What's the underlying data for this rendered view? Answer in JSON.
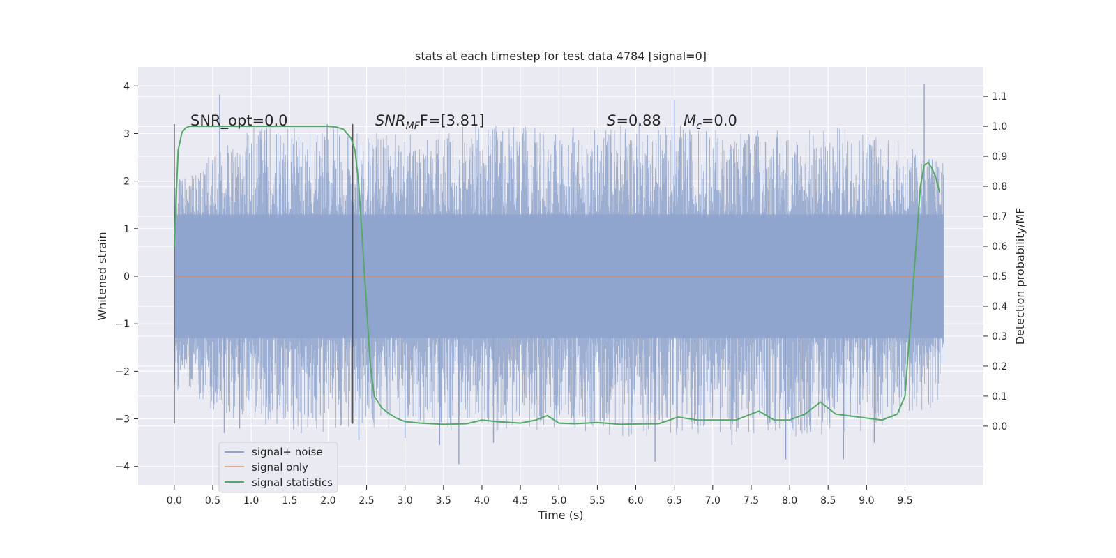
{
  "chart_data": {
    "type": "line",
    "title": "stats at each timestep for test data 4784 [signal=0]",
    "xlabel": "Time (s)",
    "ylabel": "Whitened strain",
    "ylabel_right": "Detection probability/MF",
    "xlim": [
      -0.47,
      10.52
    ],
    "ylim": [
      -4.4,
      4.4
    ],
    "ylim_right": [
      -0.198,
      1.198
    ],
    "x_ticks": [
      "0.0",
      "0.5",
      "1.0",
      "1.5",
      "2.0",
      "2.5",
      "3.0",
      "3.5",
      "4.0",
      "4.5",
      "5.0",
      "5.5",
      "6.0",
      "6.5",
      "7.0",
      "7.5",
      "8.0",
      "8.5",
      "9.0",
      "9.5"
    ],
    "x_tick_values": [
      0.0,
      0.5,
      1.0,
      1.5,
      2.0,
      2.5,
      3.0,
      3.5,
      4.0,
      4.5,
      5.0,
      5.5,
      6.0,
      6.5,
      7.0,
      7.5,
      8.0,
      8.5,
      9.0,
      9.5
    ],
    "y_ticks": [
      "−4",
      "−3",
      "−2",
      "−1",
      "0",
      "1",
      "2",
      "3",
      "4"
    ],
    "y_tick_values": [
      -4,
      -3,
      -2,
      -1,
      0,
      1,
      2,
      3,
      4
    ],
    "y_ticks_right": [
      "0.0",
      "0.1",
      "0.2",
      "0.3",
      "0.4",
      "0.5",
      "0.6",
      "0.7",
      "0.8",
      "0.9",
      "1.0",
      "1.1"
    ],
    "y_tick_values_right": [
      0.0,
      0.1,
      0.2,
      0.3,
      0.4,
      0.5,
      0.6,
      0.7,
      0.8,
      0.9,
      1.0,
      1.1
    ],
    "grid": true,
    "legend_position": "lower-left",
    "annotations": {
      "snr_opt": "SNR_opt=0.0",
      "snr_mf_main": "SNR",
      "snr_mf_sub": "MF",
      "snr_mf_rest": "F=[3.81]",
      "s_main": "S",
      "s_rest": "=0.88",
      "mc_main": "M",
      "mc_sub": "c",
      "mc_rest": "=0.0"
    },
    "vertical_markers": [
      0.0,
      2.32
    ],
    "series": [
      {
        "name": "signal+ noise",
        "color": "#8ea3cc",
        "x_range": [
          0.0,
          10.0
        ],
        "envelope_points": [
          {
            "x": 0.0,
            "upper": 2.0,
            "lower": -2.4
          },
          {
            "x": 1.0,
            "upper": 3.2,
            "lower": -3.2
          },
          {
            "x": 2.0,
            "upper": 3.2,
            "lower": -3.3
          },
          {
            "x": 3.0,
            "upper": 3.0,
            "lower": -3.2
          },
          {
            "x": 4.0,
            "upper": 3.2,
            "lower": -3.3
          },
          {
            "x": 5.0,
            "upper": 3.1,
            "lower": -3.2
          },
          {
            "x": 6.0,
            "upper": 3.3,
            "lower": -3.4
          },
          {
            "x": 7.0,
            "upper": 3.1,
            "lower": -3.3
          },
          {
            "x": 8.0,
            "upper": 3.1,
            "lower": -3.4
          },
          {
            "x": 9.0,
            "upper": 3.2,
            "lower": -3.3
          },
          {
            "x": 10.0,
            "upper": 2.4,
            "lower": -2.7
          }
        ],
        "outliers": [
          [
            0.59,
            3.82
          ],
          [
            0.65,
            -3.3
          ],
          [
            0.85,
            -3.2
          ],
          [
            1.2,
            3.1
          ],
          [
            1.65,
            -3.3
          ],
          [
            2.4,
            -3.45
          ],
          [
            3.0,
            -3.4
          ],
          [
            3.45,
            -3.55
          ],
          [
            3.7,
            -3.95
          ],
          [
            4.15,
            -3.5
          ],
          [
            6.25,
            -3.9
          ],
          [
            6.5,
            3.7
          ],
          [
            7.25,
            -3.55
          ],
          [
            7.95,
            -3.85
          ],
          [
            8.7,
            -3.85
          ],
          [
            9.1,
            -3.5
          ],
          [
            9.75,
            4.05
          ]
        ]
      },
      {
        "name": "signal only",
        "color": "#dd8452",
        "x": [
          0.0,
          10.0
        ],
        "y": [
          0.0,
          0.0
        ]
      },
      {
        "name": "signal statistics",
        "color": "#55a868",
        "axis": "right",
        "x": [
          0.0,
          0.05,
          0.1,
          0.15,
          0.2,
          0.3,
          0.5,
          1.0,
          1.5,
          2.0,
          2.1,
          2.2,
          2.3,
          2.35,
          2.4,
          2.45,
          2.5,
          2.55,
          2.6,
          2.7,
          2.8,
          2.9,
          3.0,
          3.2,
          3.5,
          3.8,
          4.0,
          4.2,
          4.5,
          4.7,
          4.85,
          5.0,
          5.2,
          5.5,
          5.8,
          6.0,
          6.3,
          6.55,
          6.8,
          7.0,
          7.3,
          7.6,
          7.8,
          8.0,
          8.2,
          8.4,
          8.6,
          8.9,
          9.2,
          9.4,
          9.5,
          9.6,
          9.7,
          9.75,
          9.8,
          9.85,
          9.9,
          9.95
        ],
        "y": [
          0.6,
          0.92,
          0.98,
          0.995,
          1.0,
          1.0,
          1.0,
          1.0,
          1.0,
          1.0,
          0.998,
          0.99,
          0.96,
          0.92,
          0.8,
          0.6,
          0.4,
          0.2,
          0.1,
          0.06,
          0.04,
          0.025,
          0.015,
          0.01,
          0.006,
          0.008,
          0.02,
          0.015,
          0.01,
          0.02,
          0.035,
          0.01,
          0.008,
          0.012,
          0.006,
          0.007,
          0.008,
          0.03,
          0.02,
          0.02,
          0.02,
          0.05,
          0.02,
          0.02,
          0.04,
          0.08,
          0.04,
          0.03,
          0.02,
          0.04,
          0.1,
          0.45,
          0.8,
          0.87,
          0.88,
          0.86,
          0.83,
          0.78
        ]
      }
    ]
  }
}
